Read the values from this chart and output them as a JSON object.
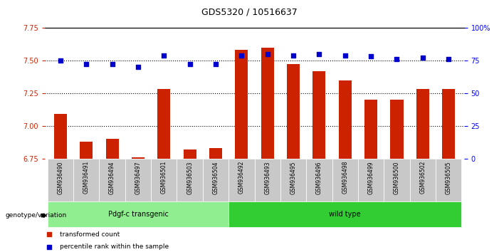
{
  "title": "GDS5320 / 10516637",
  "samples": [
    "GSM936490",
    "GSM936491",
    "GSM936494",
    "GSM936497",
    "GSM936501",
    "GSM936503",
    "GSM936504",
    "GSM936492",
    "GSM936493",
    "GSM936495",
    "GSM936496",
    "GSM936498",
    "GSM936499",
    "GSM936500",
    "GSM936502",
    "GSM936505"
  ],
  "transformed_count": [
    7.09,
    6.88,
    6.9,
    6.76,
    7.28,
    6.82,
    6.83,
    7.58,
    7.6,
    7.47,
    7.42,
    7.35,
    7.2,
    7.2,
    7.28,
    7.28
  ],
  "percentile_rank": [
    75,
    72,
    72,
    70,
    79,
    72,
    72,
    79,
    80,
    79,
    80,
    79,
    78,
    76,
    77,
    76
  ],
  "group_labels": [
    "Pdgf-c transgenic",
    "wild type"
  ],
  "group_split": 7,
  "ylim_left": [
    6.75,
    7.75
  ],
  "ylim_right": [
    0,
    100
  ],
  "yticks_left": [
    6.75,
    7.0,
    7.25,
    7.5,
    7.75
  ],
  "yticks_right": [
    0,
    25,
    50,
    75,
    100
  ],
  "bar_color": "#cc2200",
  "scatter_color": "#0000cc",
  "group_color_transgenic": "#90EE90",
  "group_color_wildtype": "#32CD32",
  "background_plot": "#ffffff",
  "background_label": "#c8c8c8",
  "legend_bar_label": "transformed count",
  "legend_scatter_label": "percentile rank within the sample",
  "genotype_label": "genotype/variation"
}
